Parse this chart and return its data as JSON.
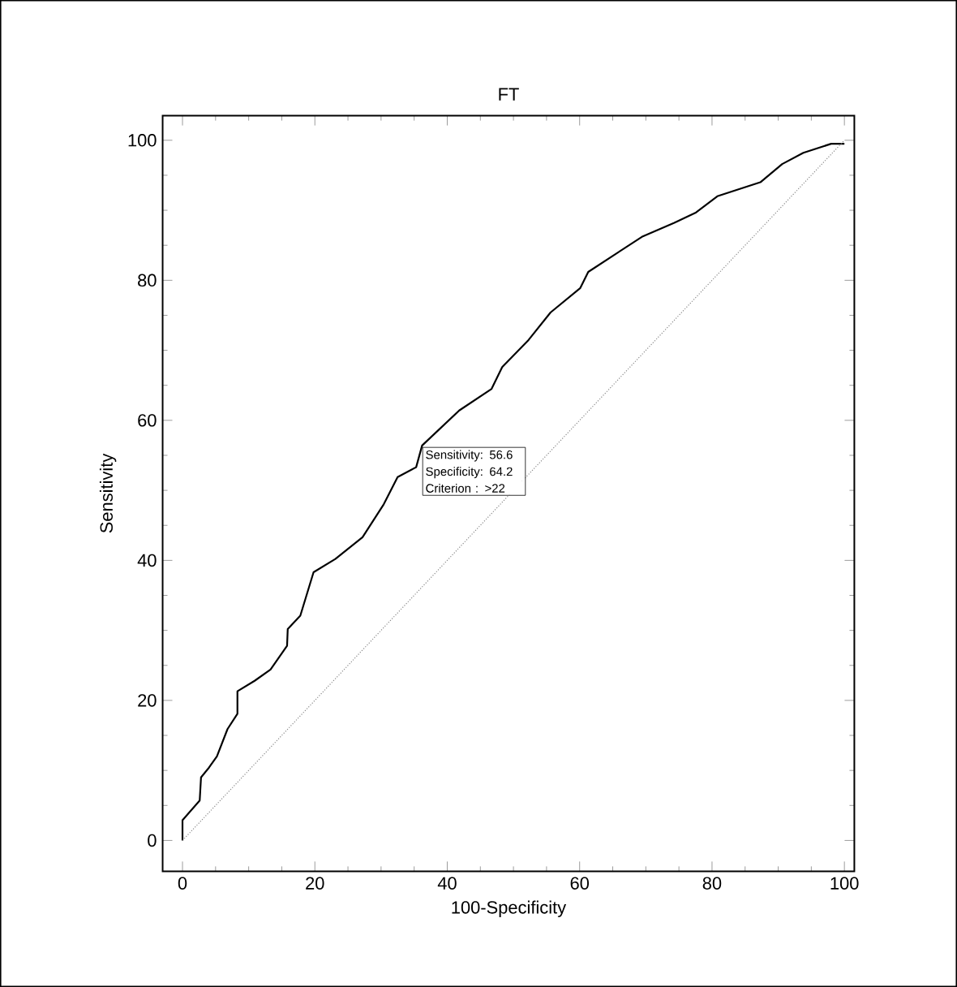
{
  "chart_data": {
    "type": "line",
    "title": "FT",
    "xlabel": "100-Specificity",
    "ylabel": "Sensitivity",
    "xlim": [
      -3,
      101.5
    ],
    "ylim": [
      -4.4,
      103.5
    ],
    "xticks": [
      0,
      20,
      40,
      60,
      80,
      100
    ],
    "yticks": [
      0,
      20,
      40,
      60,
      80,
      100
    ],
    "grid": false,
    "marker": "none",
    "series": [
      {
        "color": "#000000",
        "line_style": "solid",
        "x": [
          0,
          0,
          2.6,
          2.8,
          4,
          5.2,
          6.8,
          8.3,
          8.3,
          10.9,
          13.3,
          15.8,
          15.9,
          17.8,
          19.8,
          23.1,
          27.2,
          30.4,
          32.5,
          35.3,
          36.2,
          41.8,
          46.7,
          48.3,
          52.3,
          55.6,
          60.1,
          61.3,
          69.4,
          74.3,
          77.6,
          80.8,
          87.3,
          90.6,
          93.8,
          98,
          100
        ],
        "values": [
          0,
          2.9,
          5.7,
          9,
          10.4,
          12,
          15.9,
          18.1,
          21.3,
          22.8,
          24.4,
          27.8,
          30.2,
          32.1,
          38.3,
          40.2,
          43.3,
          48,
          51.9,
          53.3,
          56.4,
          61.4,
          64.5,
          67.6,
          71.5,
          75.4,
          78.9,
          81.2,
          86.2,
          88.2,
          89.7,
          92,
          94,
          96.6,
          98.2,
          99.5,
          99.5
        ]
      },
      {
        "color": "#888888",
        "line_style": "dotted",
        "x": [
          0,
          100
        ],
        "values": [
          0,
          100
        ]
      }
    ],
    "annotations": [
      {
        "text": "Sensitivity: 56.6",
        "x": 35.8,
        "y": 56.6
      },
      "Specificity: 64.2",
      "Criterion : >22"
    ]
  }
}
